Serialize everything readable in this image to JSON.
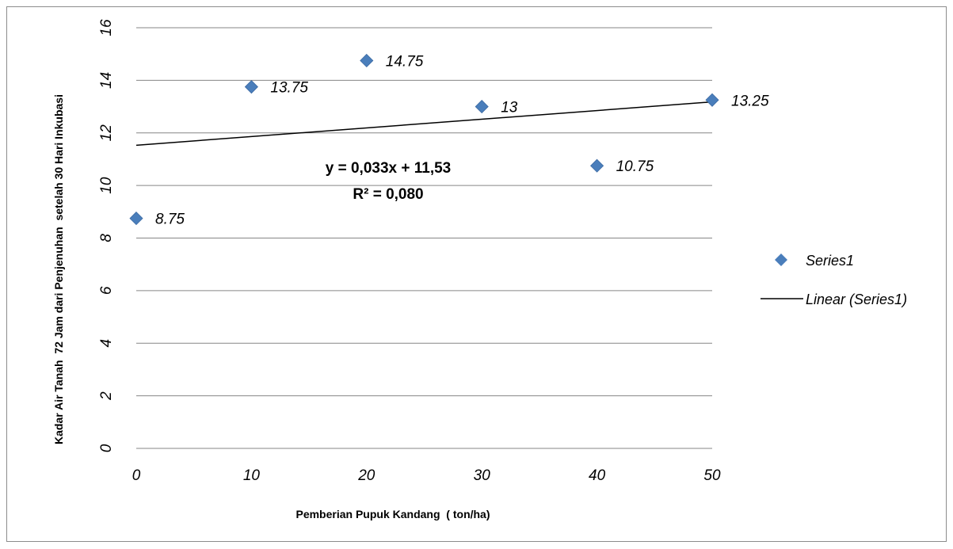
{
  "chart_data": {
    "type": "scatter",
    "xlabel": "Pemberian Pupuk Kandang  ( ton/ha)",
    "ylabel": "Kadar Air Tanah  72 Jam dari Penjenuhan  setelah 30 Hari Inkubasi",
    "xlim": [
      0,
      50
    ],
    "ylim": [
      0,
      16
    ],
    "x_ticks": [
      0,
      10,
      20,
      30,
      40,
      50
    ],
    "y_ticks": [
      0,
      2,
      4,
      6,
      8,
      10,
      12,
      14,
      16
    ],
    "x_tick_labels": [
      "0",
      "10",
      "20",
      "30",
      "40",
      "50"
    ],
    "y_tick_labels": [
      "0",
      "2",
      "4",
      "6",
      "8",
      "10",
      "12",
      "14",
      "16"
    ],
    "grid": "horizontal",
    "legend_position": "right",
    "series": [
      {
        "name": "Series1",
        "marker": "diamond",
        "color": "#4a7ebb",
        "x": [
          0,
          10,
          20,
          30,
          40,
          50
        ],
        "y": [
          8.75,
          13.75,
          14.75,
          13,
          10.75,
          13.25
        ],
        "labels": [
          "8.75",
          "13.75",
          "14.75",
          "13",
          "10.75",
          "13.25"
        ]
      }
    ],
    "trendline": {
      "name": "Linear (Series1)",
      "type": "linear",
      "slope": 0.033,
      "intercept": 11.53,
      "color": "#000000",
      "equation": "y = 0,033x + 11,53",
      "r_squared": "R² = 0,080"
    }
  }
}
